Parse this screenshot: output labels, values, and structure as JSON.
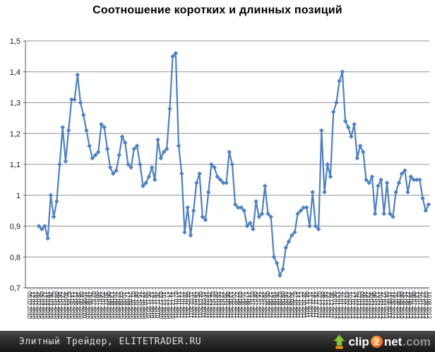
{
  "chart_data": {
    "type": "line",
    "title": "Соотношение коротких и длинных позиций",
    "marker": "diamond",
    "line_color": "#4F81BD",
    "grid": true,
    "grid_color": "#909090",
    "axis_color": "#595959",
    "ylim": [
      0.7,
      1.5
    ],
    "y_tick_labels": [
      "1,5",
      "1,4",
      "1,3",
      "1,2",
      "1,1",
      "1",
      "0,9",
      "0,8",
      "0,7"
    ],
    "categories": [
      "05.02.2010",
      "12.02.2010",
      "19.02.2010",
      "26.02.2010",
      "05.03.2010",
      "12.03.2010",
      "19.03.2010",
      "26.03.2010",
      "02.04.2010",
      "09.04.2010",
      "16.04.2010",
      "23.04.2010",
      "30.04.2010",
      "07.05.2010",
      "14.05.2010",
      "21.05.2010",
      "28.05.2010",
      "04.06.2010",
      "11.06.2010",
      "18.06.2010",
      "25.06.2010",
      "02.07.2010",
      "09.07.2010",
      "16.07.2010",
      "23.07.2010",
      "30.07.2010",
      "06.08.2010",
      "13.08.2010",
      "20.08.2010",
      "27.08.2010",
      "03.09.2010",
      "10.09.2010",
      "17.09.2010",
      "24.09.2010",
      "01.10.2010",
      "08.10.2010",
      "15.10.2010",
      "22.10.2010",
      "29.10.2010",
      "05.11.2010",
      "12.11.2010",
      "19.11.2010",
      "26.11.2010",
      "03.12.2010",
      "10.12.2010",
      "17.12.2010",
      "24.12.2010",
      "31.12.2010",
      "07.01.2011",
      "14.01.2011",
      "21.01.2011",
      "28.01.2011",
      "04.02.2011",
      "11.02.2011",
      "18.02.2011",
      "25.02.2011",
      "04.03.2011",
      "11.03.2011",
      "18.03.2011",
      "25.03.2011",
      "01.04.2011",
      "08.04.2011",
      "15.04.2011",
      "22.04.2011",
      "29.04.2011",
      "06.05.2011",
      "13.05.2011",
      "20.05.2011",
      "27.05.2011",
      "03.06.2011",
      "10.06.2011",
      "17.06.2011",
      "24.06.2011",
      "01.07.2011",
      "08.07.2011",
      "15.07.2011",
      "22.07.2011",
      "29.07.2011",
      "05.08.2011",
      "12.08.2011",
      "19.08.2011",
      "26.08.2011",
      "02.09.2011",
      "09.09.2011",
      "16.09.2011",
      "23.09.2011",
      "30.09.2011",
      "07.10.2011",
      "14.10.2011",
      "21.10.2011",
      "28.10.2011",
      "04.11.2011",
      "11.11.2011",
      "18.11.2011",
      "25.11.2011",
      "02.12.2011",
      "09.12.2011",
      "16.12.2011",
      "23.12.2011",
      "30.12.2011",
      "06.01.2012",
      "13.01.2012",
      "20.01.2012",
      "27.01.2012",
      "03.02.2012",
      "10.02.2012",
      "17.02.2012",
      "24.02.2012",
      "02.03.2012",
      "09.03.2012",
      "16.03.2012",
      "23.03.2012",
      "30.03.2012",
      "06.04.2012",
      "13.04.2012",
      "20.04.2012",
      "27.04.2012",
      "04.05.2012",
      "11.05.2012",
      "18.05.2012",
      "25.05.2012",
      "01.06.2012",
      "08.06.2012",
      "15.06.2012",
      "22.06.2012",
      "29.06.2012",
      "06.07.2012",
      "13.07.2012",
      "20.07.2012",
      "27.07.2012",
      "03.08.2012",
      "10.08.2012"
    ],
    "values": [
      0.9,
      0.89,
      0.9,
      0.86,
      1.0,
      0.93,
      0.98,
      1.1,
      1.22,
      1.11,
      1.21,
      1.31,
      1.31,
      1.39,
      1.3,
      1.26,
      1.21,
      1.16,
      1.12,
      1.13,
      1.14,
      1.23,
      1.22,
      1.15,
      1.09,
      1.07,
      1.08,
      1.13,
      1.19,
      1.17,
      1.1,
      1.09,
      1.15,
      1.16,
      1.1,
      1.03,
      1.04,
      1.06,
      1.09,
      1.05,
      1.18,
      1.12,
      1.14,
      1.15,
      1.28,
      1.45,
      1.46,
      1.16,
      1.07,
      0.88,
      0.96,
      0.87,
      0.95,
      1.04,
      1.07,
      0.93,
      0.92,
      1.01,
      1.1,
      1.09,
      1.06,
      1.05,
      1.04,
      1.04,
      1.14,
      1.1,
      0.97,
      0.96,
      0.96,
      0.95,
      0.9,
      0.91,
      0.89,
      0.98,
      0.93,
      0.94,
      1.03,
      0.94,
      0.93,
      0.8,
      0.78,
      0.74,
      0.76,
      0.83,
      0.85,
      0.87,
      0.88,
      0.94,
      0.95,
      0.96,
      0.96,
      0.9,
      1.01,
      0.9,
      0.89,
      1.21,
      1.01,
      1.1,
      1.06,
      1.27,
      1.3,
      1.37,
      1.4,
      1.24,
      1.22,
      1.19,
      1.23,
      1.12,
      1.16,
      1.14,
      1.05,
      1.04,
      1.06,
      0.94,
      1.03,
      1.05,
      0.94,
      1.04,
      0.94,
      0.93,
      1.01,
      1.04,
      1.07,
      1.08,
      1.01,
      1.06,
      1.05,
      1.05,
      1.05,
      0.99,
      0.95,
      0.97
    ]
  },
  "footer": {
    "credit": "Элитный Трейдер, ELITETRADER.RU",
    "logo": {
      "clip": "clip",
      "two": "2",
      "net": "net",
      "com": ".com"
    }
  }
}
